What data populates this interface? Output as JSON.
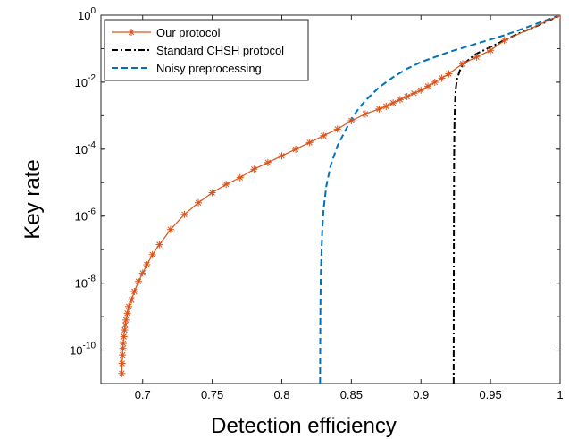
{
  "chart_data": {
    "type": "line",
    "title": "",
    "xlabel": "Detection efficiency",
    "ylabel": "Key rate",
    "xscale": "linear",
    "yscale": "log",
    "xlim": [
      0.67,
      1.0
    ],
    "ylim_exponent": [
      -11,
      0
    ],
    "x_ticks": [
      {
        "value": 0.7,
        "label": "0.7"
      },
      {
        "value": 0.75,
        "label": "0.75"
      },
      {
        "value": 0.8,
        "label": "0.8"
      },
      {
        "value": 0.85,
        "label": "0.85"
      },
      {
        "value": 0.9,
        "label": "0.9"
      },
      {
        "value": 0.95,
        "label": "0.95"
      },
      {
        "value": 1.0,
        "label": "1"
      }
    ],
    "y_ticks": [
      {
        "exponent": 0,
        "base": "10",
        "exp_label": "0"
      },
      {
        "exponent": -2,
        "base": "10",
        "exp_label": "-2"
      },
      {
        "exponent": -4,
        "base": "10",
        "exp_label": "-4"
      },
      {
        "exponent": -6,
        "base": "10",
        "exp_label": "-6"
      },
      {
        "exponent": -8,
        "base": "10",
        "exp_label": "-8"
      },
      {
        "exponent": -10,
        "base": "10",
        "exp_label": "-10"
      }
    ],
    "grid": false,
    "legend_position": "top-left",
    "series": [
      {
        "name": "Our protocol",
        "color": "#D95319",
        "line_style": "solid",
        "marker": "asterisk",
        "x": [
          0.685,
          0.6852,
          0.6855,
          0.6858,
          0.686,
          0.6865,
          0.687,
          0.6875,
          0.688,
          0.689,
          0.69,
          0.692,
          0.694,
          0.697,
          0.7,
          0.703,
          0.707,
          0.712,
          0.72,
          0.73,
          0.74,
          0.75,
          0.76,
          0.77,
          0.78,
          0.79,
          0.8,
          0.81,
          0.82,
          0.83,
          0.84,
          0.85,
          0.86,
          0.87,
          0.875,
          0.88,
          0.885,
          0.89,
          0.895,
          0.9,
          0.905,
          0.91,
          0.915,
          0.92,
          0.93,
          0.94,
          0.95,
          0.96,
          1.0
        ],
        "log10_y": [
          -10.7,
          -10.4,
          -10.15,
          -9.95,
          -9.8,
          -9.6,
          -9.4,
          -9.25,
          -9.1,
          -8.9,
          -8.7,
          -8.5,
          -8.25,
          -7.95,
          -7.7,
          -7.45,
          -7.15,
          -6.85,
          -6.4,
          -5.95,
          -5.6,
          -5.3,
          -5.05,
          -4.85,
          -4.6,
          -4.4,
          -4.2,
          -4.0,
          -3.8,
          -3.6,
          -3.4,
          -3.15,
          -2.95,
          -2.8,
          -2.72,
          -2.62,
          -2.52,
          -2.43,
          -2.33,
          -2.24,
          -2.12,
          -2.0,
          -1.88,
          -1.75,
          -1.45,
          -1.25,
          -1.05,
          -0.75,
          0.0
        ]
      },
      {
        "name": "Standard CHSH protocol",
        "color": "#000000",
        "line_style": "dashdot",
        "marker": "none",
        "x": [
          0.9235,
          0.9236,
          0.9237,
          0.9238,
          0.924,
          0.9242,
          0.9245,
          0.925,
          0.926,
          0.928,
          0.93,
          0.935,
          0.94,
          0.95,
          0.96,
          0.97,
          0.98,
          0.99,
          1.0
        ],
        "log10_y": [
          -11.0,
          -8.0,
          -6.0,
          -4.5,
          -3.5,
          -3.0,
          -2.6,
          -2.2,
          -1.9,
          -1.65,
          -1.5,
          -1.3,
          -1.15,
          -0.95,
          -0.75,
          -0.55,
          -0.38,
          -0.2,
          0.0
        ]
      },
      {
        "name": "Noisy preprocessing",
        "color": "#0072BD",
        "line_style": "dashed",
        "marker": "none",
        "x": [
          0.8275,
          0.8277,
          0.828,
          0.829,
          0.83,
          0.832,
          0.835,
          0.84,
          0.845,
          0.85,
          0.855,
          0.86,
          0.87,
          0.88,
          0.89,
          0.9,
          0.92,
          0.94,
          0.96,
          0.98,
          1.0
        ],
        "log10_y": [
          -11.0,
          -9.0,
          -7.8,
          -6.5,
          -5.8,
          -5.1,
          -4.5,
          -3.9,
          -3.5,
          -3.1,
          -2.8,
          -2.55,
          -2.15,
          -1.85,
          -1.6,
          -1.4,
          -1.1,
          -0.85,
          -0.6,
          -0.3,
          0.0
        ]
      }
    ]
  }
}
